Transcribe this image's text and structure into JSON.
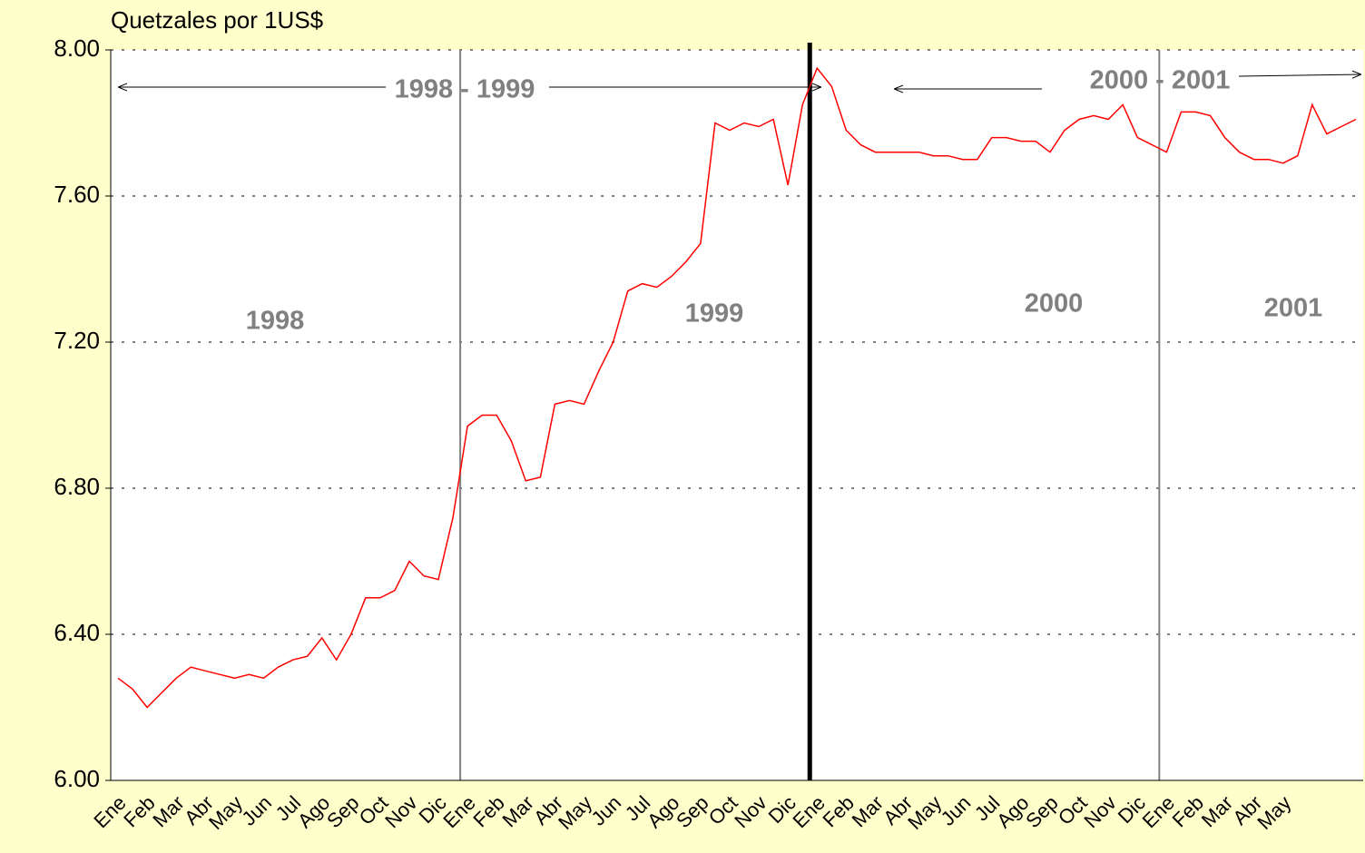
{
  "chart_data": {
    "type": "line",
    "title": "Quetzales por 1US$",
    "categories": [
      "Ene",
      null,
      "Feb",
      null,
      "Mar",
      null,
      "Abr",
      null,
      "May",
      null,
      "Jun",
      null,
      "Jul",
      null,
      "Ago",
      null,
      "Sep",
      null,
      "Oct",
      null,
      "Nov",
      null,
      "Dic",
      null,
      "Ene",
      null,
      "Feb",
      null,
      "Mar",
      null,
      "Abr",
      null,
      "May",
      null,
      "Jun",
      null,
      "Jul",
      null,
      "Ago",
      null,
      "Sep",
      null,
      "Oct",
      null,
      "Nov",
      null,
      "Dic",
      null,
      "Ene",
      null,
      "Feb",
      null,
      "Mar",
      null,
      "Abr",
      null,
      "May",
      null,
      "Jun",
      null,
      "Jul",
      null,
      "Ago",
      null,
      "Sep",
      null,
      "Oct",
      null,
      "Nov",
      null,
      "Dic",
      null,
      "Ene",
      null,
      "Feb",
      null,
      "Mar",
      null,
      "Abr",
      null,
      "May",
      null,
      null,
      null,
      null,
      null
    ],
    "series": [
      {
        "color": "#ff0000",
        "values": [
          6.28,
          6.25,
          6.2,
          6.24,
          6.28,
          6.31,
          6.3,
          6.29,
          6.28,
          6.29,
          6.28,
          6.31,
          6.33,
          6.34,
          6.39,
          6.33,
          6.4,
          6.5,
          6.5,
          6.52,
          6.6,
          6.56,
          6.55,
          6.72,
          6.97,
          7.0,
          7.0,
          6.93,
          6.82,
          6.83,
          7.03,
          7.04,
          7.03,
          7.12,
          7.2,
          7.34,
          7.36,
          7.35,
          7.38,
          7.42,
          7.47,
          7.8,
          7.78,
          7.8,
          7.79,
          7.81,
          7.63,
          7.85,
          7.95,
          7.9,
          7.78,
          7.74,
          7.72,
          7.72,
          7.72,
          7.72,
          7.71,
          7.71,
          7.7,
          7.7,
          7.76,
          7.76,
          7.75,
          7.75,
          7.72,
          7.78,
          7.81,
          7.82,
          7.81,
          7.85,
          7.76,
          7.74,
          7.72,
          7.83,
          7.83,
          7.82,
          7.76,
          7.72,
          7.7,
          7.7,
          7.69,
          7.71,
          7.85,
          7.77,
          7.79,
          7.81
        ]
      }
    ],
    "ylim": [
      6,
      8
    ],
    "yticks": [
      {
        "value": 6,
        "label": "6.00"
      },
      {
        "value": 6.4,
        "label": "6.40"
      },
      {
        "value": 6.8,
        "label": "6.80"
      },
      {
        "value": 7.2,
        "label": "7.20"
      },
      {
        "value": 7.6,
        "label": "7.60"
      },
      {
        "value": 8,
        "label": "8.00"
      }
    ],
    "grid": true,
    "annotations": [
      "1998",
      "1999",
      "2000",
      "2001",
      "1998 - 1999",
      "2000 - 2001"
    ]
  }
}
